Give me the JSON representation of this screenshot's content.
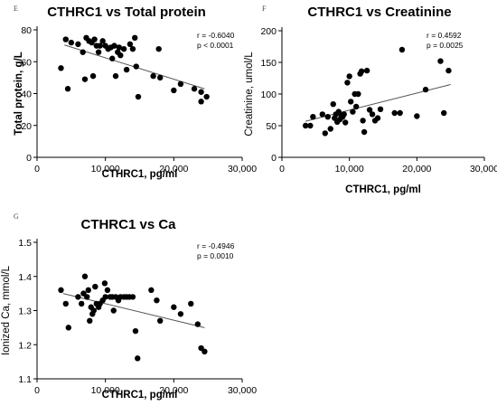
{
  "chart_data": [
    {
      "panel": "E",
      "type": "scatter",
      "title": "CTHRC1 vs Total protein",
      "xlabel": "CTHRC1, pg/ml",
      "ylabel": "Total protein, g/L",
      "ylabel_bold": true,
      "xlim": [
        0,
        30000
      ],
      "ylim": [
        0,
        80
      ],
      "xticks": [
        0,
        10000,
        20000,
        30000
      ],
      "xtick_labels": [
        "0",
        "10,000",
        "20,000",
        "30,000"
      ],
      "yticks": [
        0,
        20,
        40,
        60,
        80
      ],
      "ytick_labels": [
        "0",
        "20",
        "40",
        "60",
        "80"
      ],
      "stats": [
        "r = -0.6040",
        "p < 0.0001"
      ],
      "regression": {
        "x": [
          4000,
          24500
        ],
        "y": [
          70.5,
          43
        ]
      },
      "points": [
        [
          3500,
          56
        ],
        [
          4200,
          74
        ],
        [
          4500,
          43
        ],
        [
          5000,
          72
        ],
        [
          6000,
          71
        ],
        [
          6700,
          66
        ],
        [
          7000,
          49
        ],
        [
          7200,
          75
        ],
        [
          7600,
          73
        ],
        [
          8000,
          72
        ],
        [
          8200,
          51
        ],
        [
          8400,
          74
        ],
        [
          8700,
          70
        ],
        [
          9000,
          66
        ],
        [
          9200,
          70
        ],
        [
          9600,
          73
        ],
        [
          10000,
          70
        ],
        [
          10400,
          68
        ],
        [
          10800,
          69
        ],
        [
          11000,
          62
        ],
        [
          11300,
          70
        ],
        [
          11500,
          51
        ],
        [
          11800,
          66
        ],
        [
          12000,
          69
        ],
        [
          12200,
          64
        ],
        [
          12700,
          68
        ],
        [
          13100,
          55
        ],
        [
          13600,
          71
        ],
        [
          14000,
          68
        ],
        [
          14300,
          75
        ],
        [
          14500,
          57
        ],
        [
          14800,
          38
        ],
        [
          17000,
          51
        ],
        [
          17800,
          68
        ],
        [
          18000,
          50
        ],
        [
          20000,
          42
        ],
        [
          21000,
          46
        ],
        [
          23000,
          43
        ],
        [
          24000,
          41
        ],
        [
          24000,
          35
        ],
        [
          24800,
          38
        ]
      ]
    },
    {
      "panel": "F",
      "type": "scatter",
      "title": "CTHRC1 vs Creatinine",
      "xlabel": "CTHRC1, pg/ml",
      "ylabel": "Creatinine, umol/L",
      "ylabel_bold": false,
      "xlim": [
        0,
        30000
      ],
      "ylim": [
        0,
        200
      ],
      "xticks": [
        0,
        10000,
        20000,
        30000
      ],
      "xtick_labels": [
        "0",
        "10,000",
        "20,000",
        "30,000"
      ],
      "yticks": [
        0,
        50,
        100,
        150,
        200
      ],
      "ytick_labels": [
        "0",
        "50",
        "100",
        "150",
        "200"
      ],
      "stats": [
        "r = 0.4592",
        "p = 0.0025"
      ],
      "regression": {
        "x": [
          3500,
          25000
        ],
        "y": [
          57,
          115
        ]
      },
      "points": [
        [
          3500,
          50
        ],
        [
          4200,
          50
        ],
        [
          4600,
          64
        ],
        [
          6000,
          68
        ],
        [
          6400,
          38
        ],
        [
          6800,
          64
        ],
        [
          7200,
          45
        ],
        [
          7600,
          84
        ],
        [
          7800,
          62
        ],
        [
          8000,
          68
        ],
        [
          8200,
          56
        ],
        [
          8400,
          72
        ],
        [
          8600,
          60
        ],
        [
          8800,
          66
        ],
        [
          9000,
          64
        ],
        [
          9200,
          68
        ],
        [
          9400,
          55
        ],
        [
          9700,
          118
        ],
        [
          10000,
          128
        ],
        [
          10200,
          88
        ],
        [
          10500,
          72
        ],
        [
          10800,
          100
        ],
        [
          11000,
          80
        ],
        [
          11300,
          100
        ],
        [
          11600,
          132
        ],
        [
          11800,
          136
        ],
        [
          12000,
          58
        ],
        [
          12200,
          40
        ],
        [
          12600,
          137
        ],
        [
          13000,
          75
        ],
        [
          13400,
          68
        ],
        [
          13800,
          58
        ],
        [
          14200,
          62
        ],
        [
          14600,
          76
        ],
        [
          16700,
          70
        ],
        [
          17500,
          70
        ],
        [
          17800,
          170
        ],
        [
          20000,
          65
        ],
        [
          21300,
          107
        ],
        [
          23500,
          152
        ],
        [
          24000,
          70
        ],
        [
          24700,
          137
        ]
      ]
    },
    {
      "panel": "G",
      "type": "scatter",
      "title": "CTHRC1 vs  Ca",
      "xlabel": "CTHRC1, pg/ml",
      "ylabel": "Ionized Ca, mmol/L",
      "ylabel_bold": false,
      "xlim": [
        0,
        30000
      ],
      "ylim": [
        1.1,
        1.5
      ],
      "xticks": [
        0,
        10000,
        20000,
        30000
      ],
      "xtick_labels": [
        "0",
        "10,000",
        "20,000",
        "30,000"
      ],
      "yticks": [
        1.1,
        1.2,
        1.3,
        1.4,
        1.5
      ],
      "ytick_labels": [
        "1.1",
        "1.2",
        "1.3",
        "1.4",
        "1.5"
      ],
      "stats": [
        "r =  -0.4946",
        "p = 0.0010"
      ],
      "regression": {
        "x": [
          3800,
          24500
        ],
        "y": [
          1.35,
          1.25
        ]
      },
      "points": [
        [
          3500,
          1.36
        ],
        [
          4200,
          1.32
        ],
        [
          4600,
          1.25
        ],
        [
          6000,
          1.34
        ],
        [
          6500,
          1.32
        ],
        [
          6800,
          1.35
        ],
        [
          7000,
          1.4
        ],
        [
          7300,
          1.34
        ],
        [
          7500,
          1.36
        ],
        [
          7700,
          1.27
        ],
        [
          7900,
          1.31
        ],
        [
          8100,
          1.29
        ],
        [
          8300,
          1.3
        ],
        [
          8500,
          1.37
        ],
        [
          8700,
          1.32
        ],
        [
          9000,
          1.31
        ],
        [
          9200,
          1.32
        ],
        [
          9600,
          1.33
        ],
        [
          9900,
          1.38
        ],
        [
          10000,
          1.34
        ],
        [
          10300,
          1.36
        ],
        [
          10700,
          1.34
        ],
        [
          11000,
          1.34
        ],
        [
          11200,
          1.3
        ],
        [
          11500,
          1.34
        ],
        [
          11900,
          1.33
        ],
        [
          12200,
          1.34
        ],
        [
          12700,
          1.34
        ],
        [
          13100,
          1.34
        ],
        [
          13500,
          1.34
        ],
        [
          14000,
          1.34
        ],
        [
          14400,
          1.24
        ],
        [
          14700,
          1.16
        ],
        [
          16700,
          1.36
        ],
        [
          17500,
          1.33
        ],
        [
          18000,
          1.27
        ],
        [
          20000,
          1.31
        ],
        [
          21000,
          1.29
        ],
        [
          22500,
          1.32
        ],
        [
          23500,
          1.26
        ],
        [
          24000,
          1.19
        ],
        [
          24500,
          1.18
        ]
      ]
    }
  ]
}
